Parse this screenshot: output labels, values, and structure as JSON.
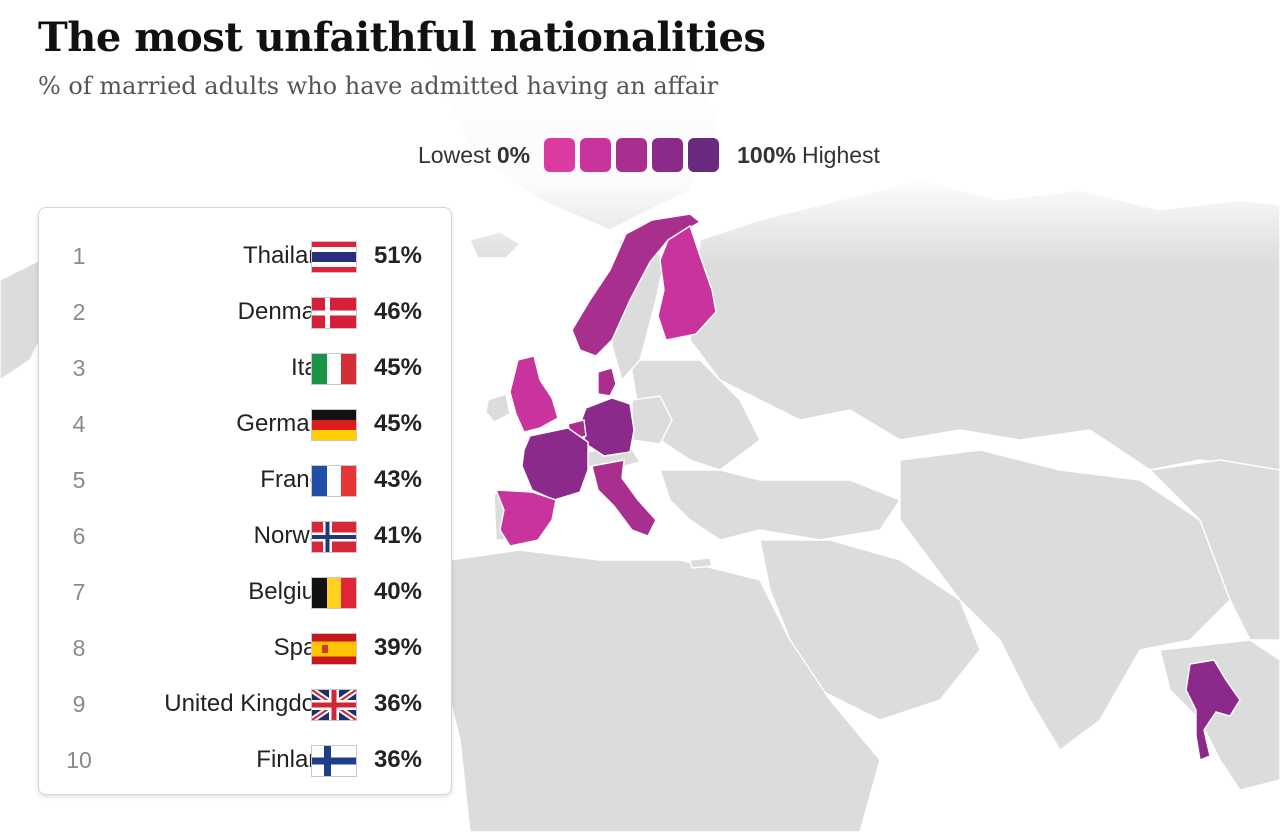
{
  "header": {
    "title": "The most unfaithful nationalities",
    "subtitle": "% of married adults who have admitted having an affair"
  },
  "legend": {
    "low_label": "Lowest",
    "low_value": "0%",
    "high_value": "100%",
    "high_label": "Highest",
    "swatches": [
      "#dc3aa0",
      "#c8349b",
      "#a92f8f",
      "#8b2a8a",
      "#6a2a7e"
    ]
  },
  "ranking": [
    {
      "rank": "1",
      "country": "Thailand",
      "percent": "51%",
      "flag": "thailand-flag-icon"
    },
    {
      "rank": "2",
      "country": "Denmark",
      "percent": "46%",
      "flag": "denmark-flag-icon"
    },
    {
      "rank": "3",
      "country": "Italy",
      "percent": "45%",
      "flag": "italy-flag-icon"
    },
    {
      "rank": "4",
      "country": "Germany",
      "percent": "45%",
      "flag": "germany-flag-icon"
    },
    {
      "rank": "5",
      "country": "France",
      "percent": "43%",
      "flag": "france-flag-icon"
    },
    {
      "rank": "6",
      "country": "Norway",
      "percent": "41%",
      "flag": "norway-flag-icon"
    },
    {
      "rank": "7",
      "country": "Belgium",
      "percent": "40%",
      "flag": "belgium-flag-icon"
    },
    {
      "rank": "8",
      "country": "Spain",
      "percent": "39%",
      "flag": "spain-flag-icon"
    },
    {
      "rank": "9",
      "country": "United Kingdom",
      "percent": "36%",
      "flag": "united-kingdom-flag-icon"
    },
    {
      "rank": "10",
      "country": "Finland",
      "percent": "36%",
      "flag": "finland-flag-icon"
    }
  ],
  "map": {
    "land_color": "#dcdcdc",
    "ocean_color": "#ffffff",
    "highlighted_color_range": [
      "#dc3aa0",
      "#6a2a7e"
    ]
  }
}
